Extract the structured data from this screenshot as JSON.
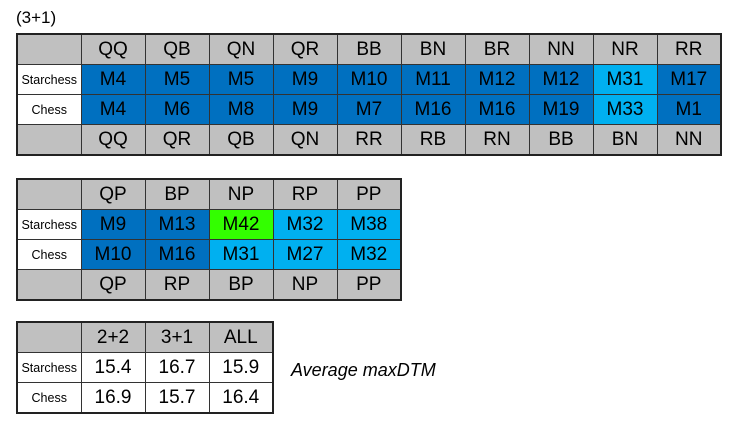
{
  "caption": "(3+1)",
  "tables": [
    {
      "header": [
        "QQ",
        "QB",
        "QN",
        "QR",
        "BB",
        "BN",
        "BR",
        "NN",
        "NR",
        "RR"
      ],
      "rows": [
        {
          "label": "Starchess",
          "cells": [
            "M4",
            "M5",
            "M5",
            "M9",
            "M10",
            "M11",
            "M12",
            "M12",
            "M31",
            "M17"
          ],
          "colors": [
            "#0070c0",
            "#0070c0",
            "#0070c0",
            "#0070c0",
            "#0070c0",
            "#0070c0",
            "#0070c0",
            "#0070c0",
            "#00b0f0",
            "#0070c0"
          ]
        },
        {
          "label": "Chess",
          "cells": [
            "M4",
            "M6",
            "M8",
            "M9",
            "M7",
            "M16",
            "M16",
            "M19",
            "M33",
            "M1"
          ],
          "colors": [
            "#0070c0",
            "#0070c0",
            "#0070c0",
            "#0070c0",
            "#0070c0",
            "#0070c0",
            "#0070c0",
            "#0070c0",
            "#00b0f0",
            "#0070c0"
          ]
        }
      ],
      "footer": [
        "QQ",
        "QR",
        "QB",
        "QN",
        "RR",
        "RB",
        "RN",
        "BB",
        "BN",
        "NN"
      ]
    },
    {
      "header": [
        "QP",
        "BP",
        "NP",
        "RP",
        "PP"
      ],
      "rows": [
        {
          "label": "Starchess",
          "cells": [
            "M9",
            "M13",
            "M42",
            "M32",
            "M38"
          ],
          "colors": [
            "#0070c0",
            "#0070c0",
            "#33ff00",
            "#00b0f0",
            "#00b0f0"
          ]
        },
        {
          "label": "Chess",
          "cells": [
            "M10",
            "M16",
            "M31",
            "M27",
            "M32"
          ],
          "colors": [
            "#0070c0",
            "#0070c0",
            "#00b0f0",
            "#00b0f0",
            "#00b0f0"
          ]
        }
      ],
      "footer": [
        "QP",
        "RP",
        "BP",
        "NP",
        "PP"
      ]
    },
    {
      "header": [
        "2+2",
        "3+1",
        "ALL"
      ],
      "rows": [
        {
          "label": "Starchess",
          "cells": [
            15.4,
            16.7,
            15.9
          ]
        },
        {
          "label": "Chess",
          "cells": [
            16.9,
            15.7,
            16.4
          ]
        }
      ]
    }
  ],
  "note": "Average maxDTM"
}
